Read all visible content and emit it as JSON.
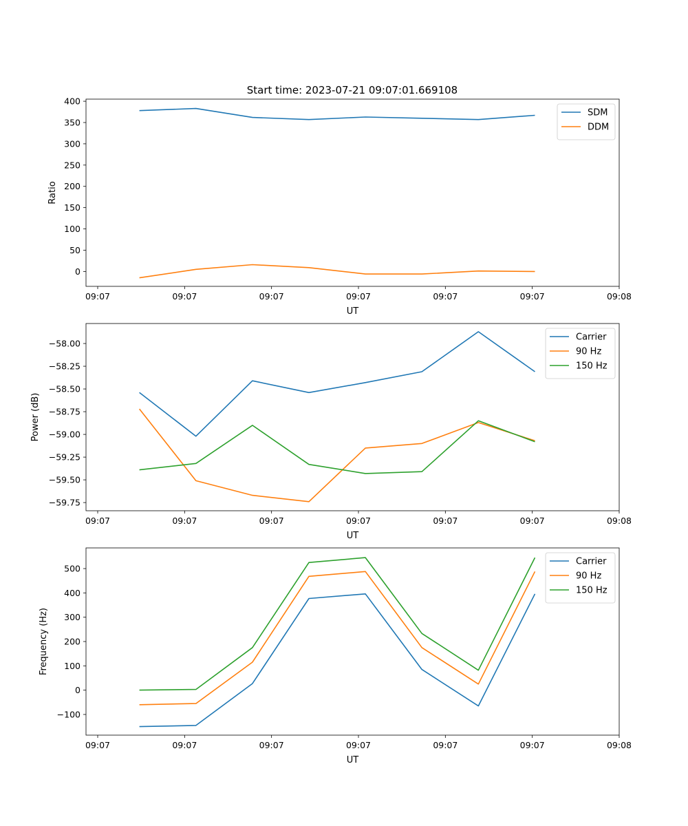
{
  "title": "Start time: 2023-07-21 09:07:01.669108",
  "chart_data": [
    {
      "type": "line",
      "xlabel": "UT",
      "ylabel": "Ratio",
      "xticks": [
        "09:07",
        "09:07",
        "09:07",
        "09:07",
        "09:07",
        "09:07",
        "09:08"
      ],
      "xlim": [
        0,
        6
      ],
      "ylim": [
        -35,
        405
      ],
      "yticks": [
        0,
        50,
        100,
        150,
        200,
        250,
        300,
        350,
        400
      ],
      "yticklabels": [
        "0",
        "50",
        "100",
        "150",
        "200",
        "250",
        "300",
        "350",
        "400"
      ],
      "x": [
        0.48,
        1.13,
        1.78,
        2.43,
        3.08,
        3.73,
        4.38,
        5.03
      ],
      "legend": "top-right",
      "series": [
        {
          "name": "SDM",
          "color": "#1f77b4",
          "values": [
            378,
            383,
            362,
            357,
            363,
            360,
            357,
            367
          ]
        },
        {
          "name": "DDM",
          "color": "#ff7f0e",
          "values": [
            -15,
            5,
            16,
            9,
            -6,
            -6,
            1,
            0
          ]
        }
      ]
    },
    {
      "type": "line",
      "xlabel": "UT",
      "ylabel": "Power (dB)",
      "xticks": [
        "09:07",
        "09:07",
        "09:07",
        "09:07",
        "09:07",
        "09:07",
        "09:08"
      ],
      "xlim": [
        0,
        6
      ],
      "ylim": [
        -59.84,
        -57.78
      ],
      "yticks": [
        -58.0,
        -58.25,
        -58.5,
        -58.75,
        -59.0,
        -59.25,
        -59.5,
        -59.75
      ],
      "yticklabels": [
        "−58.00",
        "−58.25",
        "−58.50",
        "−58.75",
        "−59.00",
        "−59.25",
        "−59.50",
        "−59.75"
      ],
      "x": [
        0.48,
        1.13,
        1.78,
        2.43,
        3.08,
        3.73,
        4.38,
        5.03
      ],
      "legend": "top-right",
      "series": [
        {
          "name": "Carrier",
          "color": "#1f77b4",
          "values": [
            -58.54,
            -59.02,
            -58.41,
            -58.54,
            -58.43,
            -58.31,
            -57.87,
            -58.31
          ]
        },
        {
          "name": "90 Hz",
          "color": "#ff7f0e",
          "values": [
            -58.72,
            -59.51,
            -59.67,
            -59.74,
            -59.15,
            -59.1,
            -58.87,
            -59.07
          ]
        },
        {
          "name": "150 Hz",
          "color": "#2ca02c",
          "values": [
            -59.39,
            -59.32,
            -58.9,
            -59.33,
            -59.43,
            -59.41,
            -58.85,
            -59.08
          ]
        }
      ]
    },
    {
      "type": "line",
      "xlabel": "UT",
      "ylabel": "Frequency (Hz)",
      "xticks": [
        "09:07",
        "09:07",
        "09:07",
        "09:07",
        "09:07",
        "09:07",
        "09:08"
      ],
      "xlim": [
        0,
        6
      ],
      "ylim": [
        -185,
        585
      ],
      "yticks": [
        -100,
        0,
        100,
        200,
        300,
        400,
        500
      ],
      "yticklabels": [
        "−100",
        "0",
        "100",
        "200",
        "300",
        "400",
        "500"
      ],
      "x": [
        0.48,
        1.13,
        1.78,
        2.43,
        3.08,
        3.73,
        4.38,
        5.03
      ],
      "legend": "top-right",
      "series": [
        {
          "name": "Carrier",
          "color": "#1f77b4",
          "values": [
            -150,
            -145,
            27,
            377,
            396,
            85,
            -65,
            396
          ]
        },
        {
          "name": "90 Hz",
          "color": "#ff7f0e",
          "values": [
            -60,
            -55,
            115,
            468,
            488,
            175,
            25,
            488
          ]
        },
        {
          "name": "150 Hz",
          "color": "#2ca02c",
          "values": [
            0,
            3,
            175,
            525,
            545,
            233,
            82,
            545
          ]
        }
      ]
    }
  ]
}
